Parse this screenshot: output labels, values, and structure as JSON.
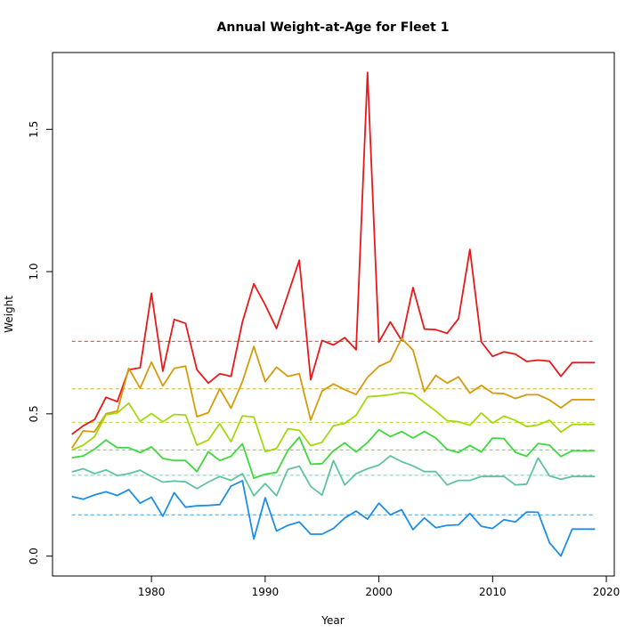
{
  "chart_data": {
    "type": "line",
    "title": "Annual Weight-at-Age for Fleet 1",
    "xlabel": "Year",
    "ylabel": "Weight",
    "xlim": [
      1971.3,
      2020.7
    ],
    "ylim": [
      -0.07,
      1.77
    ],
    "x_ticks": [
      1980,
      1990,
      2000,
      2010,
      2020
    ],
    "y_ticks": [
      0.0,
      0.5,
      1.0,
      1.5
    ],
    "x_tick_labels": [
      "1980",
      "1990",
      "2000",
      "2010",
      "2020"
    ],
    "y_tick_labels": [
      "0.0",
      "0.5",
      "1.0",
      "1.5"
    ],
    "grid": false,
    "legend": "none",
    "x": [
      1973,
      1974,
      1975,
      1976,
      1977,
      1978,
      1979,
      1980,
      1981,
      1982,
      1983,
      1984,
      1985,
      1986,
      1987,
      1988,
      1989,
      1990,
      1991,
      1992,
      1993,
      1994,
      1995,
      1996,
      1997,
      1998,
      1999,
      2000,
      2001,
      2002,
      2003,
      2004,
      2005,
      2006,
      2007,
      2008,
      2009,
      2010,
      2011,
      2012,
      2013,
      2014,
      2015,
      2016,
      2017,
      2018,
      2019
    ],
    "series": [
      {
        "color": "#e8181b",
        "mean": 0.755,
        "values": [
          0.428,
          0.458,
          0.48,
          0.558,
          0.543,
          0.655,
          0.662,
          0.924,
          0.65,
          0.832,
          0.818,
          0.655,
          0.608,
          0.641,
          0.632,
          0.823,
          0.957,
          0.883,
          0.8,
          0.92,
          1.04,
          0.62,
          0.758,
          0.742,
          0.768,
          0.725,
          1.7,
          0.752,
          0.823,
          0.758,
          0.944,
          0.798,
          0.796,
          0.783,
          0.834,
          1.078,
          0.753,
          0.702,
          0.718,
          0.71,
          0.684,
          0.689,
          0.685,
          0.632,
          0.68,
          0.68,
          0.68
        ]
      },
      {
        "color": "#d49b0c",
        "mean": 0.588,
        "values": [
          0.38,
          0.44,
          0.437,
          0.5,
          0.51,
          0.66,
          0.59,
          0.682,
          0.598,
          0.66,
          0.668,
          0.49,
          0.504,
          0.588,
          0.52,
          0.613,
          0.737,
          0.613,
          0.664,
          0.632,
          0.641,
          0.478,
          0.58,
          0.605,
          0.585,
          0.568,
          0.628,
          0.667,
          0.685,
          0.765,
          0.724,
          0.578,
          0.635,
          0.608,
          0.63,
          0.573,
          0.6,
          0.573,
          0.571,
          0.554,
          0.567,
          0.567,
          0.549,
          0.521,
          0.55,
          0.55,
          0.55
        ]
      },
      {
        "color": "#a3d80f",
        "mean": 0.47,
        "values": [
          0.373,
          0.39,
          0.42,
          0.497,
          0.503,
          0.538,
          0.474,
          0.501,
          0.472,
          0.498,
          0.496,
          0.39,
          0.408,
          0.465,
          0.402,
          0.493,
          0.489,
          0.367,
          0.378,
          0.448,
          0.442,
          0.388,
          0.4,
          0.458,
          0.467,
          0.495,
          0.56,
          0.563,
          0.567,
          0.575,
          0.571,
          0.54,
          0.51,
          0.476,
          0.472,
          0.46,
          0.503,
          0.468,
          0.492,
          0.477,
          0.455,
          0.461,
          0.478,
          0.436,
          0.463,
          0.463,
          0.463
        ]
      },
      {
        "color": "#3fd83f",
        "mean": 0.373,
        "values": [
          0.346,
          0.352,
          0.376,
          0.408,
          0.381,
          0.381,
          0.364,
          0.384,
          0.343,
          0.336,
          0.336,
          0.297,
          0.367,
          0.336,
          0.351,
          0.395,
          0.274,
          0.288,
          0.294,
          0.372,
          0.418,
          0.323,
          0.325,
          0.37,
          0.398,
          0.366,
          0.399,
          0.444,
          0.42,
          0.438,
          0.415,
          0.438,
          0.415,
          0.375,
          0.364,
          0.389,
          0.366,
          0.415,
          0.413,
          0.365,
          0.351,
          0.396,
          0.39,
          0.35,
          0.37,
          0.37,
          0.37
        ]
      },
      {
        "color": "#5ec4a0",
        "mean": 0.284,
        "values": [
          0.296,
          0.307,
          0.29,
          0.303,
          0.283,
          0.29,
          0.302,
          0.28,
          0.26,
          0.264,
          0.261,
          0.237,
          0.26,
          0.28,
          0.266,
          0.29,
          0.212,
          0.255,
          0.212,
          0.305,
          0.316,
          0.245,
          0.214,
          0.336,
          0.25,
          0.29,
          0.307,
          0.32,
          0.352,
          0.332,
          0.317,
          0.297,
          0.297,
          0.25,
          0.266,
          0.266,
          0.28,
          0.28,
          0.28,
          0.25,
          0.253,
          0.345,
          0.282,
          0.27,
          0.28,
          0.28,
          0.28
        ]
      },
      {
        "color": "#1c8ee8",
        "mean": 0.145,
        "values": [
          0.209,
          0.2,
          0.215,
          0.226,
          0.213,
          0.234,
          0.186,
          0.207,
          0.14,
          0.223,
          0.172,
          0.177,
          0.178,
          0.181,
          0.246,
          0.265,
          0.06,
          0.205,
          0.088,
          0.108,
          0.12,
          0.077,
          0.077,
          0.097,
          0.134,
          0.158,
          0.13,
          0.186,
          0.145,
          0.163,
          0.093,
          0.134,
          0.1,
          0.108,
          0.11,
          0.15,
          0.105,
          0.097,
          0.128,
          0.12,
          0.155,
          0.154,
          0.047,
          0.0,
          0.095,
          0.095,
          0.095
        ]
      }
    ]
  }
}
